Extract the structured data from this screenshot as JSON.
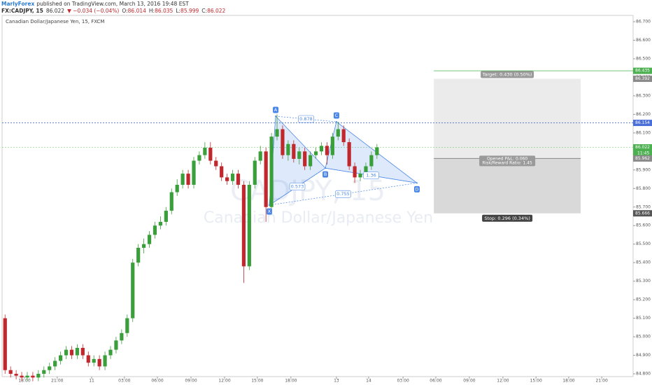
{
  "header": {
    "author": "MarlyForex",
    "published": "published on TradingView.com, March 13, 2016 19:48 EST",
    "symbol": "FX:CADJPY, 15",
    "last": 86.022,
    "change": "▼ −0.034 (−0.04%)",
    "ohlc": [
      {
        "label": "O:",
        "value": 86.014
      },
      {
        "label": "H:",
        "value": 86.035
      },
      {
        "label": "L:",
        "value": 85.999
      },
      {
        "label": "C:",
        "value": 86.022
      }
    ]
  },
  "chart_data": {
    "type": "candlestick",
    "legend": "Canadian Dollar/Japanese Yen, 15, FXCM",
    "watermark": [
      "CADJPY, 15",
      "Canadian Dollar/Japanese Yen"
    ],
    "up_color": "#3a9f3a",
    "down_color": "#c0282d",
    "xlim": [
      -8.07,
      219.3
    ],
    "ylim": [
      84.785,
      86.734
    ],
    "xticks": [
      {
        "value": 0,
        "label": "18:00"
      },
      {
        "value": 11.8,
        "label": "21:00"
      },
      {
        "value": 24.2,
        "label": "11"
      },
      {
        "value": 36.0,
        "label": "03:00"
      },
      {
        "value": 47.9,
        "label": "06:00"
      },
      {
        "value": 60.0,
        "label": "09:00"
      },
      {
        "value": 72.1,
        "label": "12:00"
      },
      {
        "value": 83.9,
        "label": "15:00"
      },
      {
        "value": 96.0,
        "label": "18:00"
      },
      {
        "value": 112.4,
        "label": "13"
      },
      {
        "value": 124.0,
        "label": "14"
      },
      {
        "value": 136.4,
        "label": "03:00"
      },
      {
        "value": 148.2,
        "label": "06:00"
      },
      {
        "value": 160.3,
        "label": "09:00"
      },
      {
        "value": 172.4,
        "label": "12:00"
      },
      {
        "value": 184.3,
        "label": "15:00"
      },
      {
        "value": 196.1,
        "label": "18:00"
      },
      {
        "value": 208.0,
        "label": "21:00"
      }
    ],
    "yticks": [
      {
        "value": 84.8,
        "label": "84.800"
      },
      {
        "value": 84.9,
        "label": "84.900"
      },
      {
        "value": 85.0,
        "label": "85.000"
      },
      {
        "value": 85.1,
        "label": "85.100"
      },
      {
        "value": 85.2,
        "label": "85.200"
      },
      {
        "value": 85.3,
        "label": "85.300"
      },
      {
        "value": 85.4,
        "label": "85.400"
      },
      {
        "value": 85.5,
        "label": "85.500"
      },
      {
        "value": 85.6,
        "label": "85.600"
      },
      {
        "value": 85.7,
        "label": "85.700"
      },
      {
        "value": 85.8,
        "label": "85.800"
      },
      {
        "value": 85.9,
        "label": "85.900"
      },
      {
        "value": 86.0,
        "label": "86.000"
      },
      {
        "value": 86.1,
        "label": "86.100"
      },
      {
        "value": 86.2,
        "label": "86.200"
      },
      {
        "value": 86.3,
        "label": "86.300"
      },
      {
        "value": 86.4,
        "label": "86.400"
      },
      {
        "value": 86.5,
        "label": "86.500"
      },
      {
        "value": 86.6,
        "label": "86.600"
      },
      {
        "value": 86.7,
        "label": "86.700"
      }
    ],
    "x": [
      -7,
      -5,
      -3,
      -1,
      1,
      3,
      5,
      7,
      9,
      11,
      13,
      15,
      17,
      19,
      21,
      23,
      25,
      27,
      29,
      31,
      33,
      35,
      37,
      39,
      41,
      43,
      45,
      47,
      49,
      51,
      53,
      55,
      57,
      59,
      61,
      63,
      65,
      67,
      69,
      71,
      73,
      75,
      77,
      79,
      81,
      83,
      85,
      87,
      89,
      91,
      93,
      95,
      97,
      99,
      101,
      103,
      105,
      107,
      109,
      111,
      113,
      115,
      117,
      119,
      121,
      123,
      125,
      127
    ],
    "open": [
      85.1,
      84.82,
      84.8,
      84.79,
      84.78,
      84.79,
      84.78,
      84.8,
      84.82,
      84.84,
      84.87,
      84.9,
      84.93,
      84.9,
      84.94,
      84.9,
      84.86,
      84.88,
      84.84,
      84.9,
      84.93,
      84.98,
      85.02,
      85.1,
      85.4,
      85.48,
      85.5,
      85.55,
      85.6,
      85.62,
      85.68,
      85.78,
      85.82,
      85.88,
      85.82,
      85.95,
      85.98,
      86.02,
      85.95,
      85.92,
      85.86,
      85.84,
      85.88,
      85.82,
      85.38,
      85.82,
      85.95,
      86.0,
      85.7,
      86.08,
      86.12,
      85.98,
      86.04,
      85.96,
      86.0,
      85.92,
      85.98,
      86.0,
      86.03,
      85.98,
      86.08,
      86.12,
      86.05,
      85.92,
      85.86,
      85.88,
      85.92,
      85.98
    ],
    "high": [
      85.12,
      84.84,
      84.82,
      84.81,
      84.81,
      84.81,
      84.82,
      84.84,
      84.86,
      84.89,
      84.92,
      84.95,
      84.95,
      84.96,
      84.96,
      84.92,
      84.9,
      84.9,
      84.92,
      84.95,
      85.0,
      85.04,
      85.12,
      85.42,
      85.5,
      85.53,
      85.57,
      85.62,
      85.65,
      85.7,
      85.8,
      85.85,
      85.9,
      85.9,
      85.97,
      86.0,
      86.05,
      86.05,
      85.97,
      85.94,
      85.88,
      85.9,
      85.9,
      85.84,
      85.84,
      85.97,
      86.03,
      86.02,
      86.1,
      86.2,
      86.14,
      86.06,
      86.06,
      86.02,
      86.02,
      86.0,
      86.02,
      86.05,
      86.05,
      86.1,
      86.16,
      86.14,
      86.07,
      85.94,
      85.9,
      85.94,
      86.0,
      86.04
    ],
    "low": [
      84.8,
      84.78,
      84.77,
      84.76,
      84.76,
      84.76,
      84.76,
      84.78,
      84.8,
      84.82,
      84.85,
      84.88,
      84.88,
      84.88,
      84.88,
      84.84,
      84.84,
      84.82,
      84.82,
      84.88,
      84.91,
      84.96,
      85.0,
      85.08,
      85.38,
      85.45,
      85.48,
      85.53,
      85.58,
      85.6,
      85.66,
      85.76,
      85.8,
      85.8,
      85.8,
      85.93,
      85.96,
      85.93,
      85.9,
      85.84,
      85.82,
      85.82,
      85.8,
      85.29,
      85.36,
      85.8,
      85.93,
      85.62,
      85.68,
      86.06,
      85.96,
      85.95,
      85.94,
      85.93,
      85.9,
      85.9,
      85.96,
      85.98,
      85.93,
      85.96,
      86.06,
      86.03,
      85.9,
      85.83,
      85.84,
      85.86,
      85.9,
      85.96
    ],
    "close": [
      84.82,
      84.8,
      84.79,
      84.78,
      84.79,
      84.78,
      84.8,
      84.82,
      84.84,
      84.87,
      84.9,
      84.93,
      84.9,
      84.94,
      84.9,
      84.86,
      84.88,
      84.84,
      84.9,
      84.93,
      84.98,
      85.02,
      85.1,
      85.4,
      85.48,
      85.5,
      85.55,
      85.6,
      85.62,
      85.68,
      85.78,
      85.82,
      85.88,
      85.82,
      85.95,
      85.98,
      86.02,
      85.95,
      85.92,
      85.86,
      85.84,
      85.88,
      85.82,
      85.38,
      85.82,
      85.95,
      86.0,
      85.7,
      86.08,
      86.12,
      85.98,
      86.04,
      85.96,
      86.0,
      85.92,
      85.98,
      86.0,
      86.03,
      85.98,
      86.08,
      86.12,
      86.05,
      85.92,
      85.86,
      85.88,
      85.92,
      85.98,
      86.022
    ],
    "pattern": {
      "color": "#4a86e8",
      "points": [
        {
          "label": "X",
          "x": 88.2,
          "y": 85.71
        },
        {
          "label": "A",
          "x": 90.5,
          "y": 86.19
        },
        {
          "label": "B",
          "x": 108.4,
          "y": 85.91
        },
        {
          "label": "C",
          "x": 112.4,
          "y": 86.16
        },
        {
          "label": "D",
          "x": 141.4,
          "y": 85.83
        }
      ],
      "ratios": [
        0.878,
        0.573,
        0.755,
        1.36
      ]
    },
    "lines": [
      {
        "value": 86.435,
        "color": "#4caf50",
        "dash": false
      },
      {
        "value": 86.154,
        "color": "#4a6fd8",
        "dash": true
      },
      {
        "value": 86.022,
        "color": "#8fd68f",
        "dash": true
      }
    ],
    "position": {
      "x_start": 147.5,
      "x_end": 200.4,
      "target": 86.392,
      "entry": 85.962,
      "stop": 85.666,
      "target_label": "Target: 0.430 (0.50%)",
      "pnl_label": "Opened P&L: 0.060",
      "rr_label": "Risk/Reward Ratio: 1.45",
      "stop_label": "Stop: 0.296 (0.34%)"
    },
    "price_labels": [
      {
        "value": 86.435,
        "color": "#4caf50"
      },
      {
        "value": 86.392,
        "color": "#8a8a8a"
      },
      {
        "value": 86.154,
        "color": "#4a6fd8"
      },
      {
        "value": 86.022,
        "color": "#4caf50"
      },
      {
        "value": 85.962,
        "color": "#8a8a8a"
      },
      {
        "value": 85.666,
        "color": "#555555"
      }
    ],
    "countdown": "11:45"
  }
}
